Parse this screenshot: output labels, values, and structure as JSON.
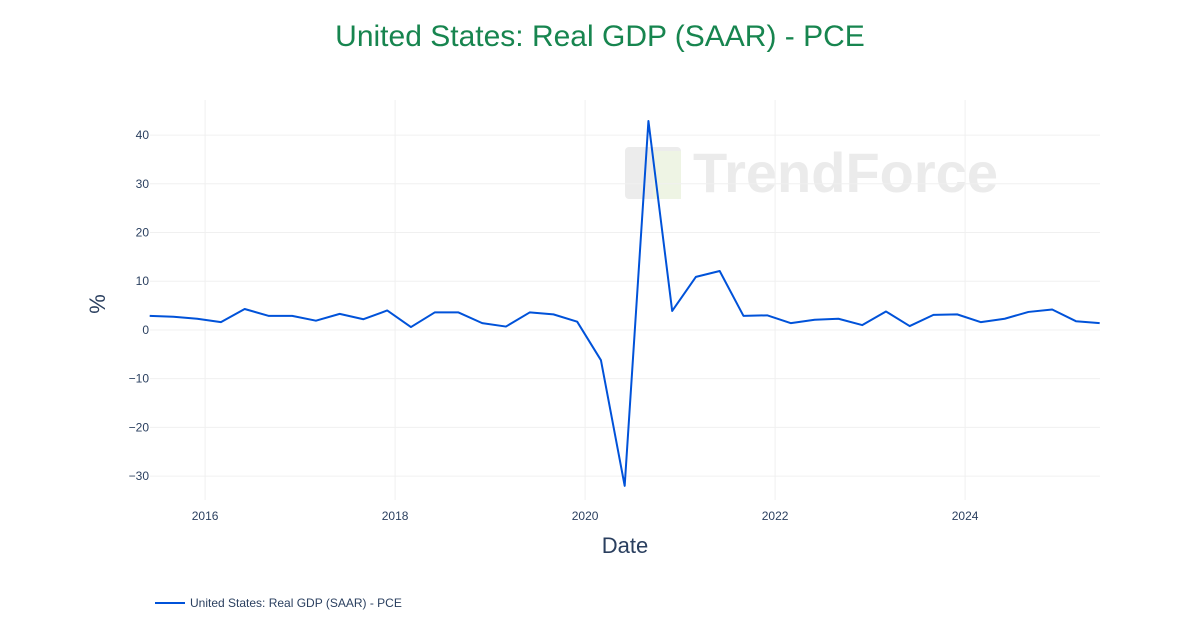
{
  "chart_data": {
    "type": "line",
    "title": "United States: Real GDP (SAAR) - PCE",
    "xlabel": "Date",
    "ylabel": "%",
    "x_ticks": [
      "2016",
      "2018",
      "2020",
      "2022",
      "2024"
    ],
    "y_ticks": [
      "40",
      "30",
      "20",
      "10",
      "0",
      "−10",
      "−20",
      "−30"
    ],
    "ylim": [
      -34.9,
      47.2
    ],
    "grid": true,
    "legend_position": "bottom-left",
    "watermark": "TrendForce",
    "series": [
      {
        "name": "United States: Real GDP (SAAR) - PCE",
        "color": "#0052d9",
        "x": [
          "2015-06",
          "2015-09",
          "2015-12",
          "2016-03",
          "2016-06",
          "2016-09",
          "2016-12",
          "2017-03",
          "2017-06",
          "2017-09",
          "2017-12",
          "2018-03",
          "2018-06",
          "2018-09",
          "2018-12",
          "2019-03",
          "2019-06",
          "2019-09",
          "2019-12",
          "2020-03",
          "2020-06",
          "2020-09",
          "2020-12",
          "2021-03",
          "2021-06",
          "2021-09",
          "2021-12",
          "2022-03",
          "2022-06",
          "2022-09",
          "2022-12",
          "2023-03",
          "2023-06",
          "2023-09",
          "2023-12",
          "2024-03",
          "2024-06",
          "2024-09",
          "2024-12",
          "2025-03",
          "2025-06"
        ],
        "y": [
          2.9,
          2.7,
          2.3,
          1.6,
          4.3,
          2.9,
          2.9,
          1.9,
          3.3,
          2.2,
          4.0,
          0.6,
          3.6,
          3.6,
          1.4,
          0.7,
          3.6,
          3.2,
          1.7,
          -6.2,
          -32.0,
          42.9,
          3.9,
          10.9,
          12.1,
          2.9,
          3.0,
          1.4,
          2.1,
          2.3,
          1.0,
          3.8,
          0.8,
          3.1,
          3.2,
          1.6,
          2.3,
          3.7,
          4.2,
          1.8,
          1.4
        ]
      }
    ]
  }
}
